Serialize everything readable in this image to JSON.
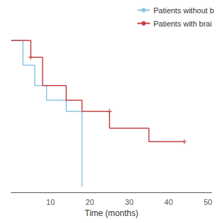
{
  "chart_data": {
    "type": "line",
    "xlabel": "Time (months)",
    "xlim": [
      0,
      51
    ],
    "xticks": [
      10,
      20,
      30,
      40,
      50
    ],
    "ylim": [
      -0.35,
      1.05
    ],
    "tick_labels": "x",
    "grid": false,
    "legend": "upper right",
    "marker": "plus",
    "series": [
      {
        "name": "Patients without b",
        "color": "#8ac4e0",
        "x": [
          0,
          3,
          3,
          6,
          6,
          9,
          9,
          14,
          14,
          18,
          18
        ],
        "values": [
          1.0,
          1.0,
          0.78,
          0.78,
          0.6,
          0.6,
          0.47,
          0.47,
          0.37,
          0.37,
          -0.3
        ],
        "censor_x": [
          14
        ],
        "censor_y": [
          0.47
        ]
      },
      {
        "name": "Patients with brai",
        "color": "#c44040",
        "x": [
          0,
          5,
          5,
          8,
          8,
          14,
          14,
          18,
          18,
          25,
          25,
          35,
          35,
          44
        ],
        "values": [
          1.0,
          1.0,
          0.85,
          0.85,
          0.6,
          0.6,
          0.47,
          0.47,
          0.37,
          0.37,
          0.22,
          0.22,
          0.1,
          0.1
        ],
        "censor_x": [
          5,
          25,
          44
        ],
        "censor_y": [
          0.85,
          0.37,
          0.1
        ]
      }
    ]
  }
}
